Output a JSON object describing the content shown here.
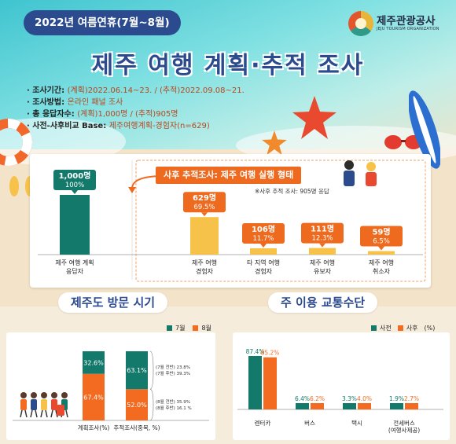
{
  "header": {
    "badge": "2022년 여름연휴(7월~8월)",
    "logo_name": "제주관광공사",
    "logo_sub": "JEJU TOURISM ORGANIZATION",
    "title": "제주 여행 계획·추적 조사"
  },
  "survey_info": [
    {
      "key": "· 조사기간: ",
      "value": "(계획)2022.06.14~23. / (추적)2022.09.08~21."
    },
    {
      "key": "· 조사방법: ",
      "value": "온라인 패널 조사"
    },
    {
      "key": "· 총 응답자수: ",
      "value": "(계획)1,000명 / (추적)905명"
    },
    {
      "key": "· 사전-사후비교 Base: ",
      "value": "제주여행계획-경험자(n=629)"
    }
  ],
  "chart_data": [
    {
      "type": "bar",
      "title": "사후 추적조사: 제주 여행 실행 형태",
      "note": "※사후 추적 조사: 905명 응답",
      "categories": [
        "제주 여행 계획 응답자",
        "제주 여행 경험자",
        "타 지역 여행 경험자",
        "제주 여행 유보자",
        "제주 여행 취소자"
      ],
      "category_lines": [
        [
          "제주 여행 계획",
          "응답자"
        ],
        [
          "제주 여행",
          "경험자"
        ],
        [
          "타 지역 여행",
          "경험자"
        ],
        [
          "제주 여행",
          "유보자"
        ],
        [
          "제주 여행",
          "취소자"
        ]
      ],
      "values": [
        1000,
        629,
        106,
        111,
        59
      ],
      "value_labels": [
        "1,000명",
        "629명",
        "106명",
        "111명",
        "59명"
      ],
      "percent_labels": [
        "100%",
        "69.5%",
        "11.7%",
        "12.3%",
        "6.5%"
      ],
      "colors": [
        "#137a6b",
        "#f6c24a",
        "#f6c24a",
        "#f6c24a",
        "#f6c24a"
      ]
    },
    {
      "type": "bar",
      "stacked": true,
      "title": "제주도 방문 시기",
      "categories": [
        "계획조사(%)",
        "추적조사(중복, %)"
      ],
      "series": [
        {
          "name": "7월",
          "values": [
            32.6,
            63.1
          ],
          "labels": [
            "32.6%",
            "63.1%"
          ],
          "color": "#137a6b"
        },
        {
          "name": "8월",
          "values": [
            67.4,
            52.0
          ],
          "labels": [
            "67.4%",
            "52.0%"
          ],
          "color": "#f26b21"
        }
      ],
      "annotations": {
        "july": [
          "(7월 전반) 23.8%",
          "(7월 후반) 39.3%"
        ],
        "august": [
          "(8월 전반) 35.9%",
          "(8월 후반) 16.1 %"
        ]
      }
    },
    {
      "type": "bar",
      "title": "주 이용 교통수단",
      "unit": "(%)",
      "categories": [
        "렌터카",
        "버스",
        "택시",
        "전세버스"
      ],
      "category_lines": [
        [
          "렌터카"
        ],
        [
          "버스"
        ],
        [
          "택시"
        ],
        [
          "전세버스",
          "(여행사제공)"
        ]
      ],
      "series": [
        {
          "name": "사전",
          "values": [
            87.4,
            6.4,
            3.3,
            1.9
          ],
          "labels": [
            "87.4%",
            "6.4%",
            "3.3%",
            "1.9%"
          ],
          "color": "#137a6b"
        },
        {
          "name": "사후",
          "values": [
            85.2,
            6.2,
            4.0,
            2.7
          ],
          "labels": [
            "85.2%",
            "6.2%",
            "4.0%",
            "2.7%"
          ],
          "color": "#f26b21"
        }
      ]
    }
  ]
}
